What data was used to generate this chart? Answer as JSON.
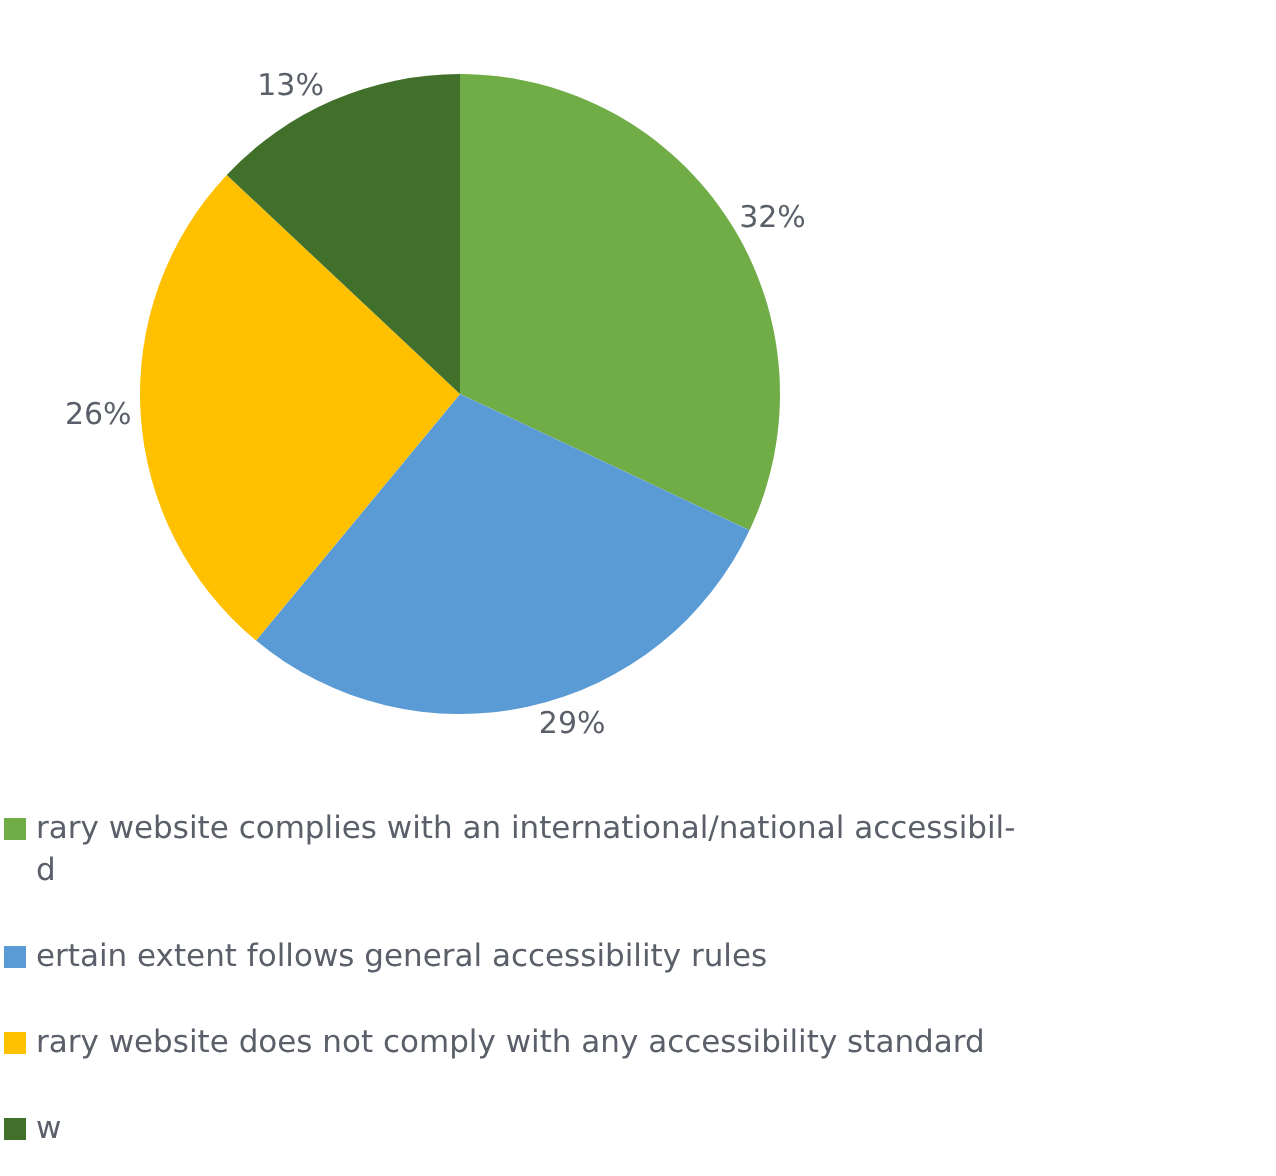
{
  "chart_data": {
    "type": "pie",
    "categories": [
      "rary website complies with an international/national accessibil-\nd",
      "ertain extent follows general accessibility rules",
      "rary website does not comply with any accessibility standard",
      "w"
    ],
    "values": [
      32,
      29,
      26,
      13
    ],
    "value_labels": [
      "32%",
      "29%",
      "26%",
      "13%"
    ],
    "colors": [
      "#70ad47",
      "#5b9bd5",
      "#ffc000",
      "#41702b"
    ],
    "legend": "bottom"
  }
}
